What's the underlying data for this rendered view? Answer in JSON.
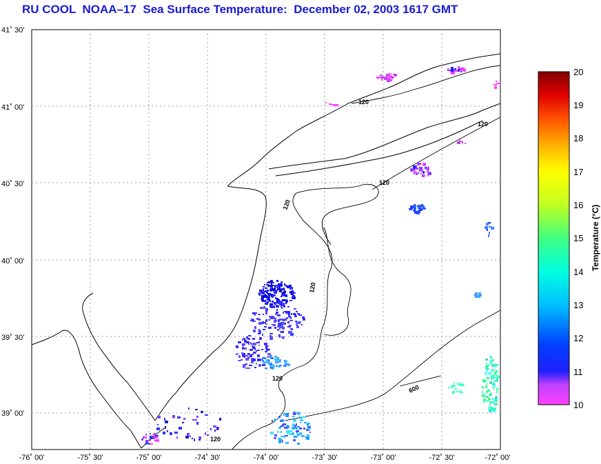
{
  "title": "RU COOL  NOAA–17  Sea Surface Temperature:  December 02, 2003 1617 GMT",
  "map": {
    "lat_labels": [
      "41˚ 30'",
      "41˚ 00'",
      "40˚ 30'",
      "40˚ 00'",
      "39˚ 30'",
      "39˚ 00'"
    ],
    "lon_labels": [
      "-76˚ 00'",
      "-75˚ 30'",
      "-75˚ 00'",
      "-74˚ 30'",
      "-74˚ 00'",
      "-73˚ 30'",
      "-73˚ 00'",
      "-72˚ 30'",
      "-72˚ 00'"
    ],
    "extent": {
      "lon_min": -76.0,
      "lon_max": -72.0,
      "lat_min": 38.75,
      "lat_max": 41.5
    },
    "gridlines": true,
    "contour_labels": [
      "120",
      "120",
      "120",
      "120",
      "120",
      "120",
      "120",
      "600"
    ]
  },
  "colorbar": {
    "title": "Temperature (°C)",
    "ticks": [
      "20",
      "19",
      "18",
      "17",
      "16",
      "15",
      "14",
      "13",
      "12",
      "11",
      "10"
    ],
    "min": 10,
    "max": 20,
    "colors": [
      "#ff40ff",
      "#8040ff",
      "#0000ff",
      "#0060ff",
      "#00b0ff",
      "#00ffff",
      "#00ffa0",
      "#40ff40",
      "#c0ff00",
      "#ffff00",
      "#ffc000",
      "#ff8000",
      "#ff4000",
      "#ff0000",
      "#d00000",
      "#800000"
    ]
  }
}
